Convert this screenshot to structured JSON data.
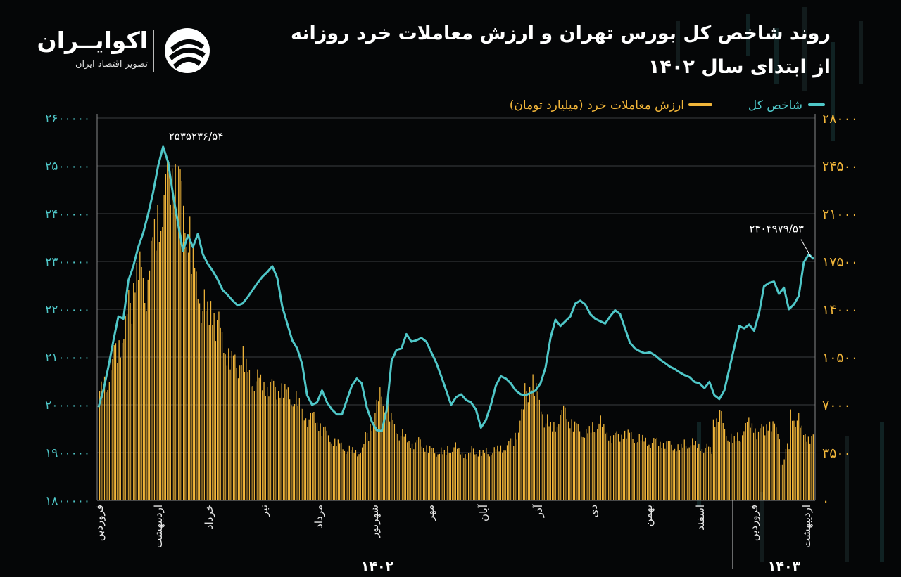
{
  "header": {
    "title_line1": "روند شاخص کل بورس تهران و ارزش معاملات خرد روزانه",
    "title_line2": "از ابتدای سال ۱۴۰۲"
  },
  "logo": {
    "brand": "اکوایــران",
    "tagline": "تصویر اقتصاد ایران",
    "icon": "ekoiran-swirl-icon"
  },
  "colors": {
    "background": "#050607",
    "index_line": "#4fc7c8",
    "value_bars": "#f2b63a",
    "grid": "#3a3d40",
    "axis_text": "#cccccc"
  },
  "chart_data": {
    "type": "bar+line",
    "legend": [
      {
        "name": "شاخص کل",
        "color": "#4fc7c8",
        "kind": "line"
      },
      {
        "name": "ارزش معاملات خرد (میلیارد تومان)",
        "color": "#f2b63a",
        "kind": "bar"
      }
    ],
    "legend_position": "top-right",
    "grid": true,
    "left_axis": {
      "ylim": [
        1800000,
        2600000
      ],
      "ticks": [
        "۱۸۰۰۰۰۰",
        "۱۹۰۰۰۰۰",
        "۲۰۰۰۰۰۰",
        "۲۱۰۰۰۰۰",
        "۲۲۰۰۰۰۰",
        "۲۳۰۰۰۰۰",
        "۲۴۰۰۰۰۰",
        "۲۵۰۰۰۰۰",
        "۲۶۰۰۰۰۰"
      ]
    },
    "right_axis": {
      "ylim": [
        0,
        28000
      ],
      "ticks": [
        "۰",
        "۳۵۰۰",
        "۷۰۰۰",
        "۱۰۵۰۰",
        "۱۴۰۰۰",
        "۱۷۵۰۰",
        "۲۱۰۰۰",
        "۲۴۵۰۰",
        "۲۸۰۰۰"
      ]
    },
    "x_months": [
      "فروردین",
      "اردیبهشت",
      "خرداد",
      "تیر",
      "مرداد",
      "شهریور",
      "مهر",
      "آبان",
      "آذر",
      "دی",
      "بهمن",
      "اسفند",
      "فروردین",
      "اردیبهشت"
    ],
    "x_years": [
      "۱۴۰۲",
      "۱۴۰۳"
    ],
    "annotations": [
      "۲۵۳۵۲۳۶/۵۴",
      "۲۳۰۴۹۷۹/۵۳"
    ],
    "index_series": [
      1995000,
      2032000,
      2080000,
      2135000,
      2185000,
      2180000,
      2260000,
      2290000,
      2330000,
      2360000,
      2400000,
      2445000,
      2500000,
      2540000,
      2508000,
      2440000,
      2380000,
      2322000,
      2355000,
      2330000,
      2358000,
      2315000,
      2295000,
      2280000,
      2262000,
      2240000,
      2230000,
      2218000,
      2208000,
      2212000,
      2225000,
      2240000,
      2255000,
      2268000,
      2278000,
      2290000,
      2265000,
      2205000,
      2170000,
      2135000,
      2118000,
      2085000,
      2020000,
      2000000,
      2005000,
      2030000,
      2005000,
      1990000,
      1980000,
      1980000,
      2010000,
      2040000,
      2055000,
      2045000,
      1995000,
      1965000,
      1947000,
      1945000,
      1988000,
      2092000,
      2115000,
      2118000,
      2148000,
      2132000,
      2135000,
      2140000,
      2132000,
      2110000,
      2088000,
      2060000,
      2030000,
      2000000,
      2016000,
      2022000,
      2010000,
      2005000,
      1990000,
      1952000,
      1968000,
      2000000,
      2040000,
      2060000,
      2055000,
      2045000,
      2030000,
      2022000,
      2020000,
      2025000,
      2030000,
      2045000,
      2078000,
      2140000,
      2178000,
      2165000,
      2175000,
      2185000,
      2212000,
      2218000,
      2210000,
      2190000,
      2180000,
      2175000,
      2170000,
      2185000,
      2198000,
      2190000,
      2160000,
      2130000,
      2118000,
      2112000,
      2108000,
      2110000,
      2104000,
      2095000,
      2088000,
      2080000,
      2075000,
      2068000,
      2062000,
      2058000,
      2048000,
      2045000,
      2035000,
      2048000,
      2020000,
      2012000,
      2030000,
      2075000,
      2120000,
      2165000,
      2160000,
      2168000,
      2155000,
      2192000,
      2248000,
      2255000,
      2258000,
      2232000,
      2245000,
      2200000,
      2210000,
      2228000,
      2298000,
      2315000,
      2304979
    ],
    "value_series_approx": [
      8000,
      8500,
      9500,
      10800,
      11500,
      12800,
      14200,
      16500,
      16800,
      15000,
      17500,
      19000,
      20500,
      22000,
      23500,
      24200,
      23000,
      21500,
      19500,
      17000,
      15500,
      14200,
      13500,
      14000,
      12800,
      11800,
      10800,
      10200,
      9800,
      10500,
      9500,
      8900,
      8800,
      8600,
      8400,
      8300,
      8100,
      8200,
      7900,
      7600,
      7400,
      6900,
      6300,
      5900,
      6100,
      5600,
      5100,
      4700,
      4300,
      4100,
      3900,
      3700,
      3600,
      3500,
      3800,
      4700,
      5600,
      6900,
      7600,
      6800,
      5900,
      5200,
      4800,
      4500,
      4200,
      4100,
      4300,
      3900,
      3700,
      3500,
      3600,
      3400,
      3700,
      3900,
      3600,
      3400,
      3300,
      3700,
      3500,
      3400,
      3500,
      3600,
      3700,
      3800,
      4000,
      4300,
      4900,
      6300,
      7900,
      8700,
      7900,
      6800,
      5800,
      5300,
      5500,
      6100,
      6500,
      5800,
      5400,
      5100,
      4900,
      5000,
      5300,
      5700,
      5200,
      4800,
      4600,
      4700,
      4900,
      4800,
      4600,
      4500,
      4400,
      4300,
      4200,
      4300,
      4200,
      4100,
      4000,
      3900,
      3800,
      4100,
      4200,
      4000,
      3900,
      3800,
      3700,
      5900,
      6200,
      5200,
      4600,
      4300,
      4600,
      5200,
      5600,
      5400,
      4900,
      5200,
      5600,
      5400,
      4900,
      2800,
      3800,
      6200,
      5900,
      5100,
      4700,
      4500
    ]
  }
}
